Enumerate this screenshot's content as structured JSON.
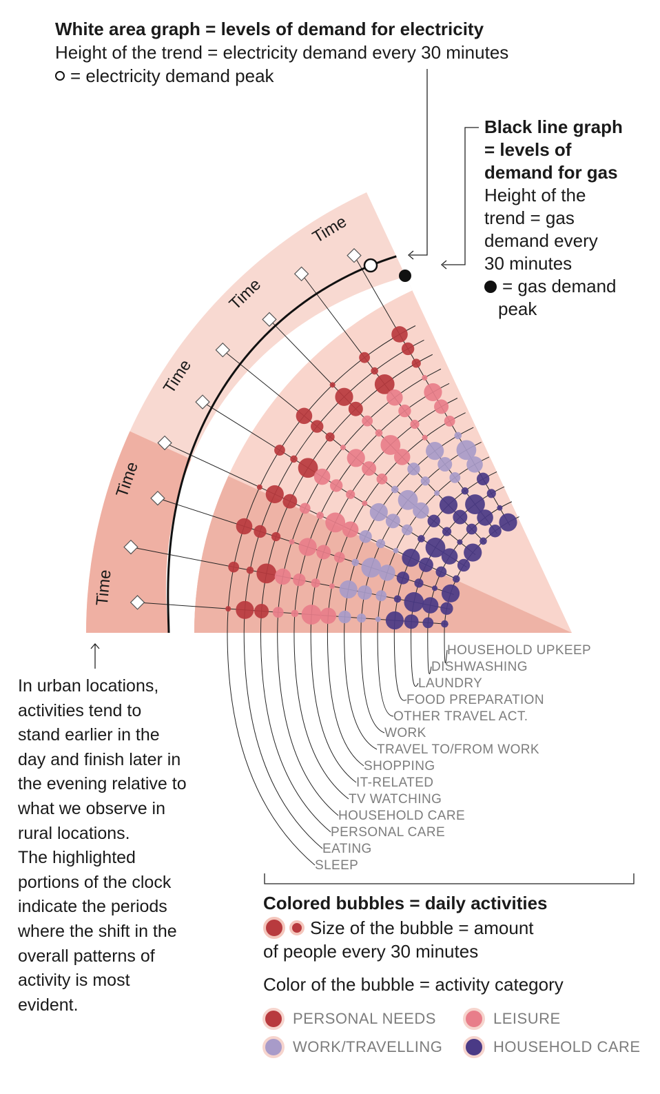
{
  "legend_top": {
    "title": "White area graph =  levels of demand for electricity",
    "line1": "Height of the trend = electricity demand every 30 minutes",
    "line2": "= electricity demand peak"
  },
  "legend_gas": {
    "title_lines": [
      "Black line graph",
      "=  levels of",
      "demand for gas"
    ],
    "body_lines": [
      "Height of the",
      "trend = gas",
      "demand every",
      "30 minutes"
    ],
    "peak_line1": "= gas demand",
    "peak_line2": "peak"
  },
  "time_label": "Time",
  "activities": [
    "SLEEP",
    "EATING",
    "PERSONAL CARE",
    "HOUSEHOLD CARE",
    "TV WATCHING",
    "IT-RELATED",
    "SHOPPING",
    "TRAVEL TO/FROM WORK",
    "WORK",
    "OTHER TRAVEL ACT.",
    "FOOD PREPARATION",
    "LAUNDRY",
    "DISHWASHING",
    "HOUSEHOLD UPKEEP"
  ],
  "urban_note_lines": [
    "In urban locations,",
    "activities tend to",
    "stand earlier in the",
    "day and finish later in",
    "the evening relative to",
    "what we observe in",
    "rural locations.",
    "The highlighted",
    "portions of the clock",
    "indicate the periods",
    "where the shift in the",
    "overall patterns of",
    "activity is most",
    "evident."
  ],
  "bubble_legend": {
    "title": "Colored bubbles = daily activities",
    "size_line1": "Size of the bubble = amount",
    "size_line2": "of people every 30 minutes",
    "color_line": "Color of the bubble = activity category"
  },
  "categories": [
    {
      "label": "PERSONAL NEEDS",
      "color": "#b83a3e"
    },
    {
      "label": "LEISURE",
      "color": "#e87e8a"
    },
    {
      "label": "WORK/TRAVELLING",
      "color": "#a89bc9"
    },
    {
      "label": "HOUSEHOLD CARE",
      "color": "#4a3a86"
    }
  ],
  "colors": {
    "outer_band": "#f8d9d1",
    "inner_band": "#f9d5cc",
    "highlight": "#efb0a3",
    "spoke_region": "#f4c6bc",
    "white_area": "#ffffff",
    "gas_line": "#111111"
  }
}
